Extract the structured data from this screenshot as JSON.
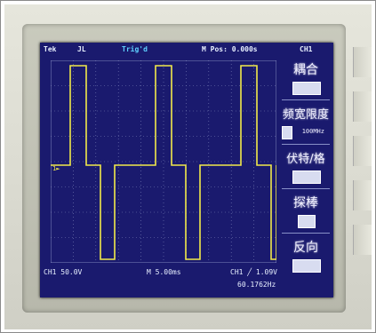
{
  "status_bar": {
    "mode": "Tek",
    "trigger_state": "JL",
    "run_state": "Trig'd",
    "position": "M Pos: 0.000s",
    "channel_menu": "CH1"
  },
  "bottom_bar": {
    "ch1_scale": "CH1  50.0V",
    "time_scale": "M 5.00ms",
    "trigger_info": "CH1 ╱ 1.09V",
    "frequency": "60.1762Hz"
  },
  "menu": {
    "coupling": {
      "title": "耦合",
      "value": ""
    },
    "bandwidth": {
      "title": "频宽限度",
      "value": "100MHz"
    },
    "volts_div": {
      "title": "伏特/格",
      "value": ""
    },
    "probe": {
      "title": "探棒",
      "value": ""
    },
    "invert": {
      "title": "反向",
      "value": ""
    }
  },
  "colors": {
    "screen_bg": "#1a1a6e",
    "trace": "#f2e94a",
    "grid": "#7a80b8",
    "text": "#e8f0ff"
  }
}
